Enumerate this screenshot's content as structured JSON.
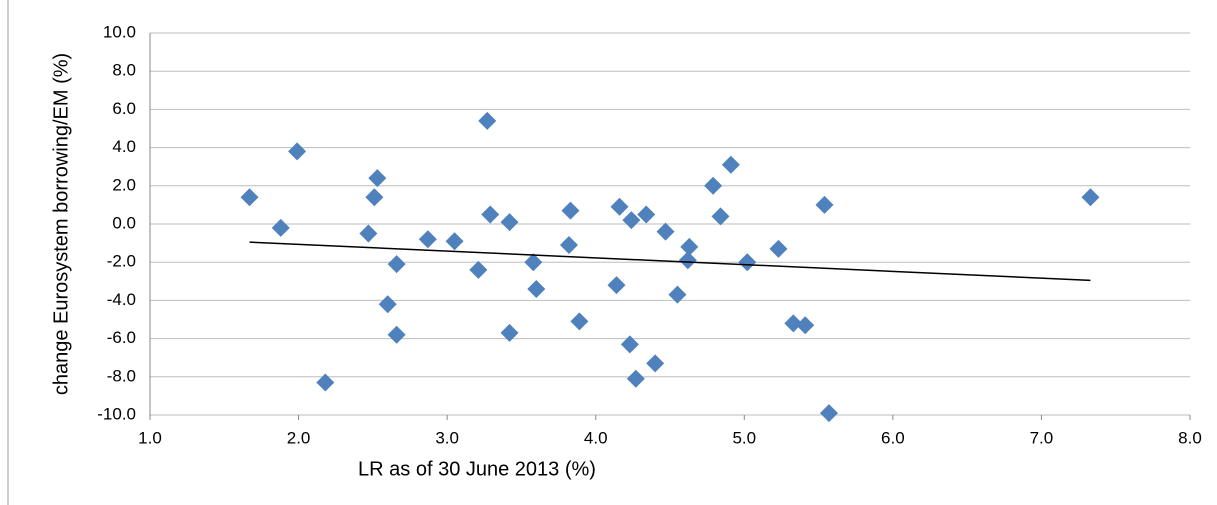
{
  "chart_data": {
    "type": "scatter",
    "x_label": "LR as of 30 June 2013 (%)",
    "y_label": "change Eurosystem borrowing/EM (%)",
    "xlim": [
      1.0,
      8.0
    ],
    "ylim": [
      -10.0,
      10.0
    ],
    "xticks": [
      {
        "value": 1,
        "label": "1.0"
      },
      {
        "value": 2,
        "label": "2.0"
      },
      {
        "value": 3,
        "label": "3.0"
      },
      {
        "value": 4,
        "label": "4.0"
      },
      {
        "value": 5,
        "label": "5.0"
      },
      {
        "value": 6,
        "label": "6.0"
      },
      {
        "value": 7,
        "label": "7.0"
      },
      {
        "value": 8,
        "label": "8.0"
      }
    ],
    "yticks": [
      {
        "value": -10,
        "label": "-10.0"
      },
      {
        "value": -8,
        "label": "-8.0"
      },
      {
        "value": -6,
        "label": "-6.0"
      },
      {
        "value": -4,
        "label": "-4.0"
      },
      {
        "value": -2,
        "label": "-2.0"
      },
      {
        "value": 0,
        "label": "0.0"
      },
      {
        "value": 2,
        "label": "2.0"
      },
      {
        "value": 4,
        "label": "4.0"
      },
      {
        "value": 6,
        "label": "6.0"
      },
      {
        "value": 8,
        "label": "8.0"
      },
      {
        "value": 10,
        "label": "10.0"
      }
    ],
    "grid": true,
    "color": "#4f81bd",
    "x": [
      1.67,
      1.88,
      1.99,
      2.18,
      2.47,
      2.53,
      2.51,
      2.6,
      2.66,
      2.66,
      2.87,
      3.05,
      3.21,
      3.27,
      3.29,
      3.42,
      3.42,
      3.58,
      3.6,
      3.83,
      3.82,
      3.89,
      4.14,
      4.16,
      4.24,
      4.23,
      4.27,
      4.34,
      4.4,
      4.47,
      4.55,
      4.63,
      4.62,
      4.79,
      4.84,
      4.91,
      5.02,
      5.23,
      5.33,
      5.41,
      5.54,
      5.57,
      7.33
    ],
    "values": [
      1.4,
      -0.2,
      3.8,
      -8.3,
      -0.5,
      2.4,
      1.4,
      -4.2,
      -2.1,
      -5.8,
      -0.8,
      -0.9,
      -2.4,
      5.4,
      0.5,
      0.1,
      -5.7,
      -2.0,
      -3.4,
      0.7,
      -1.1,
      -5.1,
      -3.2,
      0.9,
      0.2,
      -6.3,
      -8.1,
      0.5,
      -7.3,
      -0.4,
      -3.7,
      -1.2,
      -1.9,
      2.0,
      0.4,
      3.1,
      -2.0,
      -1.3,
      -5.2,
      -5.3,
      1.0,
      -9.9,
      1.4
    ],
    "trend": {
      "color": "#000000",
      "x": [
        1.67,
        7.33
      ],
      "values": [
        -0.95,
        -2.95
      ]
    }
  }
}
